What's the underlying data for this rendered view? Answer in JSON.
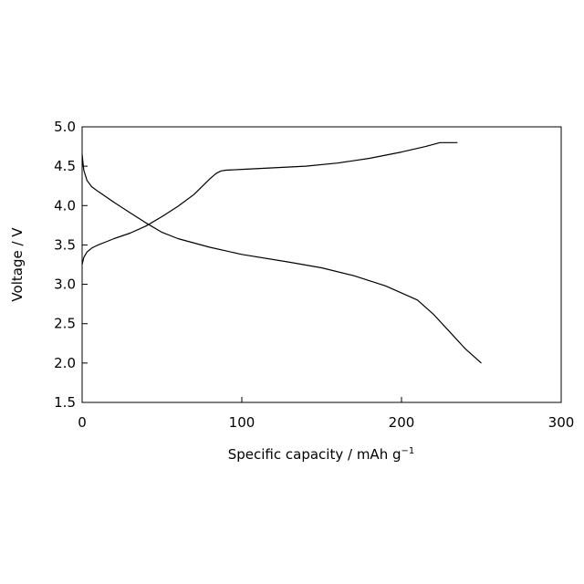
{
  "chart_data": {
    "type": "line",
    "xlabel": "Specific capacity / mAh g",
    "xlabel_superscript": "−1",
    "ylabel": "Voltage / V",
    "xlim": [
      0,
      300
    ],
    "ylim": [
      1.5,
      5.0
    ],
    "x_ticks": [
      0,
      100,
      200,
      300
    ],
    "y_ticks": [
      1.5,
      2.0,
      2.5,
      3.0,
      3.5,
      4.0,
      4.5,
      5.0
    ],
    "x_tick_labels": [
      "0",
      "100",
      "200",
      "300"
    ],
    "y_tick_labels": [
      "1.5",
      "2.0",
      "2.5",
      "3.0",
      "3.5",
      "4.0",
      "4.5",
      "5.0"
    ],
    "grid": false,
    "legend": "none",
    "line_color": "#000000",
    "series": [
      {
        "x": [
          0,
          1,
          3,
          6,
          10,
          15,
          20,
          30,
          40,
          50,
          60,
          70,
          75,
          80,
          84,
          87,
          90,
          100,
          120,
          140,
          160,
          180,
          200,
          215,
          224,
          235
        ],
        "y": [
          3.25,
          3.34,
          3.41,
          3.46,
          3.5,
          3.54,
          3.58,
          3.65,
          3.74,
          3.86,
          3.99,
          4.14,
          4.24,
          4.34,
          4.41,
          4.44,
          4.45,
          4.46,
          4.48,
          4.5,
          4.54,
          4.6,
          4.68,
          4.75,
          4.8,
          4.8
        ]
      },
      {
        "x": [
          0,
          1,
          3,
          6,
          10,
          20,
          30,
          40,
          50,
          60,
          80,
          100,
          130,
          150,
          170,
          190,
          210,
          220,
          230,
          240,
          250
        ],
        "y": [
          4.65,
          4.45,
          4.32,
          4.24,
          4.18,
          4.04,
          3.91,
          3.78,
          3.66,
          3.58,
          3.47,
          3.38,
          3.28,
          3.21,
          3.11,
          2.98,
          2.8,
          2.62,
          2.4,
          2.18,
          2.0
        ]
      }
    ]
  }
}
